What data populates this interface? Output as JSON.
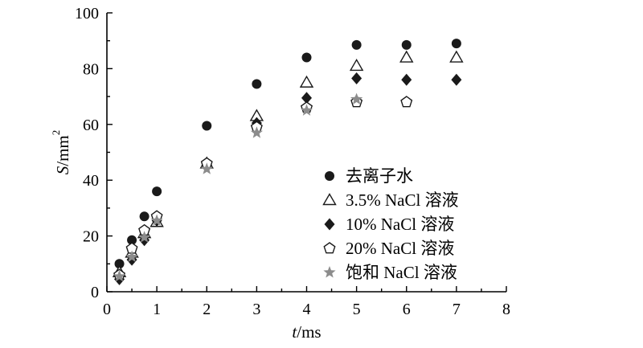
{
  "chart_data": {
    "type": "scatter",
    "xlabel_italic": "t",
    "xlabel_unit": "/ms",
    "ylabel_italic": "S",
    "ylabel_unit": "/mm",
    "ylabel_sup": "2",
    "xlim": [
      0,
      8
    ],
    "ylim": [
      0,
      100
    ],
    "xticks": [
      "0",
      "1",
      "2",
      "3",
      "4",
      "5",
      "6",
      "7",
      "8"
    ],
    "yticks": [
      "0",
      "20",
      "40",
      "60",
      "80",
      "100"
    ],
    "legend_position": "lower-right",
    "series": [
      {
        "name": "去离子水",
        "marker": "circle",
        "color": "#1a1a1a",
        "x": [
          0.25,
          0.5,
          0.75,
          1,
          2,
          3,
          4,
          5,
          6,
          7
        ],
        "y": [
          10,
          18.5,
          27,
          36,
          59.5,
          74.5,
          84,
          88.5,
          88.5,
          89
        ]
      },
      {
        "name": "3.5% NaCl 溶液",
        "marker": "triangle-open",
        "color": "#1a1a1a",
        "x": [
          0.25,
          0.5,
          0.75,
          1,
          2,
          3,
          4,
          5,
          6,
          7
        ],
        "y": [
          7,
          14,
          21,
          25,
          46,
          63,
          75,
          81,
          84,
          84
        ]
      },
      {
        "name": "10% NaCl 溶液",
        "marker": "diamond",
        "color": "#1a1a1a",
        "x": [
          0.25,
          0.5,
          0.75,
          1,
          2,
          3,
          4,
          5,
          6,
          7
        ],
        "y": [
          4.5,
          11.5,
          18.5,
          25.5,
          45.5,
          60.5,
          69.5,
          76.5,
          76,
          76
        ]
      },
      {
        "name": "20% NaCl 溶液",
        "marker": "pentagon-open",
        "color": "#1a1a1a",
        "x": [
          0.25,
          0.5,
          0.75,
          1,
          2,
          3,
          4,
          5,
          6
        ],
        "y": [
          6,
          15.5,
          22,
          27,
          46,
          59,
          66,
          68,
          68
        ]
      },
      {
        "name": "饱和 NaCl 溶液",
        "marker": "star",
        "color": "#8c8c8c",
        "x": [
          0.25,
          0.5,
          0.75,
          1,
          2,
          3,
          4,
          5
        ],
        "y": [
          5.5,
          12.5,
          19.5,
          25.5,
          44,
          57,
          65,
          69
        ]
      }
    ]
  }
}
